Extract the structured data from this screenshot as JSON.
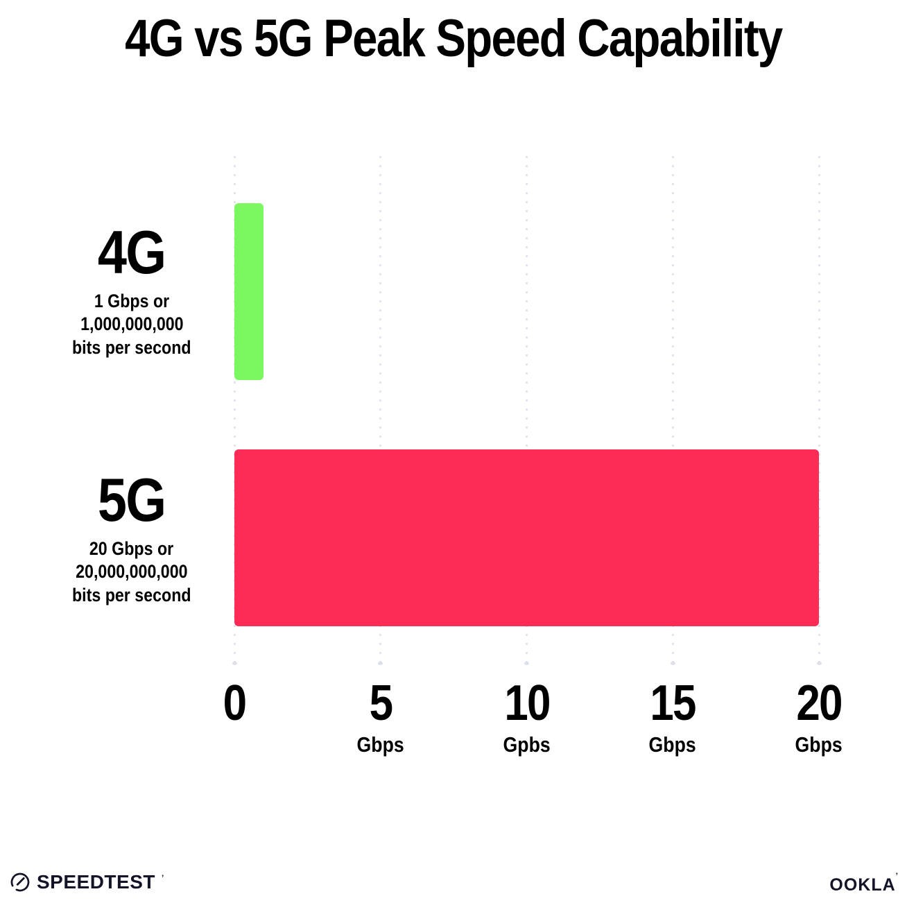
{
  "title": "4G vs 5G Peak Speed Capability",
  "chart_data": {
    "type": "bar",
    "orientation": "horizontal",
    "title": "4G vs 5G Peak Speed Capability",
    "categories": [
      "4G",
      "5G"
    ],
    "values": [
      1,
      20
    ],
    "unit": "Gbps",
    "xlim": [
      0,
      20
    ],
    "x_tick_step": 5,
    "grid": "vertical dotted gridlines at each tick",
    "legend": "none",
    "bar_colors": [
      "#7BF860",
      "#FC2C57"
    ],
    "rows": [
      {
        "name": "4G",
        "value_gbps": 1,
        "desc_lines": [
          "1 Gbps or",
          "1,000,000,000",
          "bits per second"
        ]
      },
      {
        "name": "5G",
        "value_gbps": 20,
        "desc_lines": [
          "20 Gbps or",
          "20,000,000,000",
          "bits per second"
        ]
      }
    ],
    "x_ticks": [
      {
        "value": "0",
        "unit": ""
      },
      {
        "value": "5",
        "unit": "Gbps"
      },
      {
        "value": "10",
        "unit": "Gpbs"
      },
      {
        "value": "15",
        "unit": "Gbps"
      },
      {
        "value": "20",
        "unit": "Gbps"
      }
    ]
  },
  "footer": {
    "speedtest_wordmark": "SPEEDTEST",
    "speedtest_trademark": "’",
    "ookla_wordmark": "OOKLA",
    "ookla_trademark": "’"
  },
  "colors": {
    "background": "#FFFFFF",
    "bar_4g": "#7BF860",
    "bar_5g": "#FC2C57",
    "gridline_dots": "#E1E3EF",
    "text": "#000000",
    "logo": "#141429"
  }
}
